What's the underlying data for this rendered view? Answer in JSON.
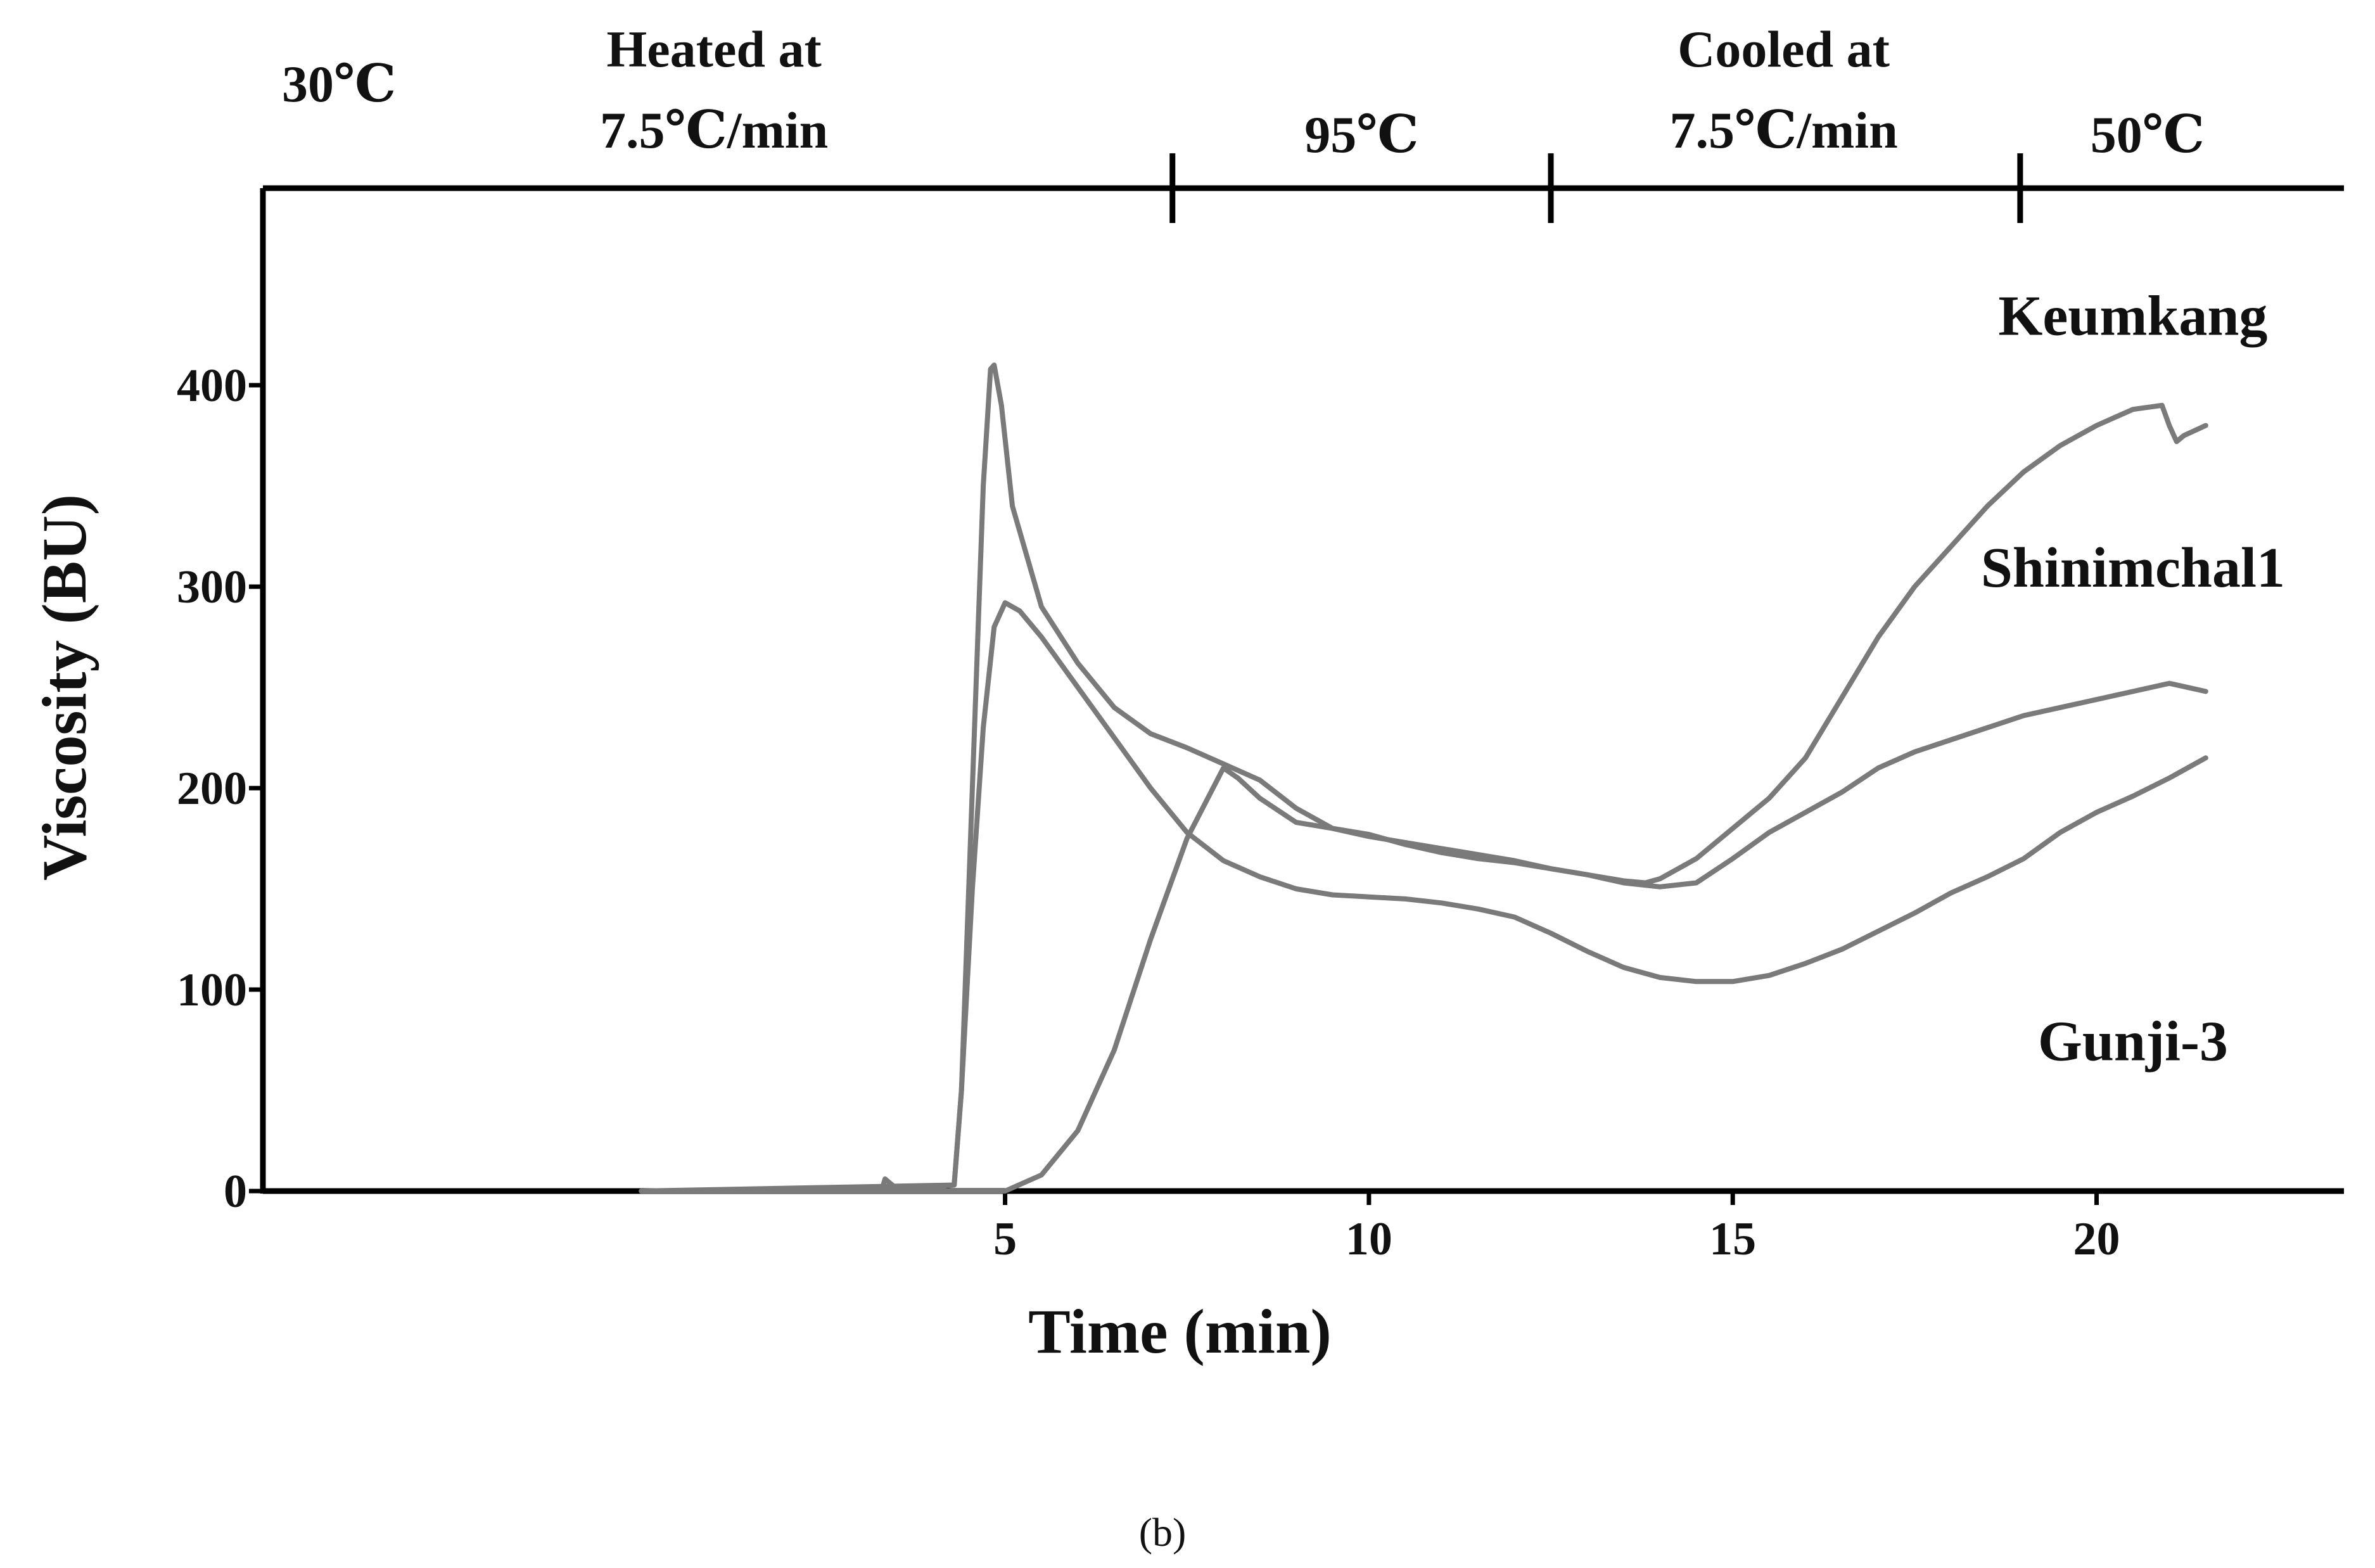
{
  "chart_data": {
    "type": "line",
    "xlabel": "Time (min)",
    "ylabel": "Viscosity (BU)",
    "caption": "(b)",
    "xlim": [
      -5.2,
      23.4
    ],
    "ylim": [
      0,
      500
    ],
    "x_ticks": [
      5,
      10,
      15,
      20
    ],
    "y_ticks": [
      0,
      100,
      200,
      300,
      400
    ],
    "grid": false,
    "temperature_bar": {
      "boundaries": [
        7.3,
        12.5,
        18.95
      ],
      "labels": [
        {
          "text": "30℃",
          "lines": [
            "30℃"
          ],
          "x": -5.2
        },
        {
          "text": "Heated at 7.5℃/min",
          "lines": [
            "Heated at",
            "7.5℃/min"
          ],
          "x": 1.0
        },
        {
          "text": "95℃",
          "lines": [
            "95℃"
          ],
          "x": 9.9
        },
        {
          "text": "Cooled at 7.5℃/min",
          "lines": [
            "Cooled at",
            "7.5℃/min"
          ],
          "x": 15.7
        },
        {
          "text": "50℃",
          "lines": [
            "50℃"
          ],
          "x": 20.7
        }
      ]
    },
    "series": [
      {
        "name": "Keumkang",
        "color": "#7a7a7a",
        "label_at": [
          20.5,
          425
        ],
        "x": [
          0,
          3.3,
          3.35,
          3.45,
          3.5,
          4.3,
          4.4,
          4.55,
          4.7,
          4.8,
          4.85,
          4.95,
          5.1,
          5.5,
          6.0,
          6.5,
          7.0,
          7.5,
          8.0,
          8.5,
          9.0,
          9.5,
          10.0,
          10.5,
          11.0,
          11.5,
          12.0,
          12.5,
          13.0,
          13.5,
          13.8,
          14.0,
          14.5,
          15.0,
          15.5,
          16.0,
          16.5,
          17.0,
          17.5,
          18.0,
          18.5,
          19.0,
          19.5,
          20.0,
          20.5,
          20.9,
          21.0,
          21.1,
          21.2,
          21.5
        ],
        "y": [
          0,
          0,
          6,
          3,
          0,
          3,
          50,
          200,
          350,
          408,
          410,
          390,
          340,
          290,
          262,
          240,
          227,
          220,
          212,
          204,
          190,
          180,
          176,
          173,
          170,
          167,
          164,
          160,
          157,
          154,
          153,
          155,
          165,
          180,
          195,
          215,
          245,
          275,
          300,
          320,
          340,
          357,
          370,
          380,
          388,
          390,
          380,
          372,
          375,
          380
        ]
      },
      {
        "name": "Shinimchal1",
        "color": "#7a7a7a",
        "label_at": [
          20.5,
          300
        ],
        "x": [
          0,
          4.3,
          4.4,
          4.55,
          4.7,
          4.85,
          5.0,
          5.2,
          5.5,
          6.0,
          6.5,
          7.0,
          7.5,
          8.0,
          8.5,
          9.0,
          9.5,
          10.0,
          10.5,
          11.0,
          11.5,
          12.0,
          12.5,
          13.0,
          13.5,
          14.0,
          14.5,
          15.0,
          15.5,
          16.0,
          16.5,
          17.0,
          17.5,
          18.0,
          18.5,
          19.0,
          19.5,
          20.0,
          20.5,
          21.0,
          21.5
        ],
        "y": [
          0,
          3,
          50,
          150,
          230,
          280,
          292,
          288,
          275,
          250,
          225,
          200,
          178,
          164,
          156,
          150,
          147,
          146,
          145,
          143,
          140,
          136,
          128,
          119,
          111,
          106,
          104,
          104,
          107,
          113,
          120,
          129,
          138,
          148,
          156,
          165,
          178,
          188,
          196,
          205,
          215
        ]
      },
      {
        "name": "Gunji-3",
        "color": "#7a7a7a",
        "label_at": [
          20.5,
          65
        ],
        "x": [
          0,
          5.0,
          5.5,
          6.0,
          6.5,
          7.0,
          7.5,
          8.0,
          8.2,
          8.5,
          9.0,
          9.5,
          10.0,
          10.5,
          11.0,
          11.5,
          12.0,
          12.5,
          13.0,
          13.5,
          14.0,
          14.5,
          15.0,
          15.5,
          16.0,
          16.5,
          17.0,
          17.5,
          18.0,
          18.5,
          19.0,
          19.5,
          20.0,
          20.5,
          21.0,
          21.5
        ],
        "y": [
          0,
          0,
          8,
          30,
          70,
          125,
          175,
          210,
          205,
          195,
          183,
          180,
          177,
          172,
          168,
          165,
          163,
          160,
          157,
          153,
          151,
          153,
          165,
          178,
          188,
          198,
          210,
          218,
          224,
          230,
          236,
          240,
          244,
          248,
          252,
          248
        ]
      }
    ]
  }
}
